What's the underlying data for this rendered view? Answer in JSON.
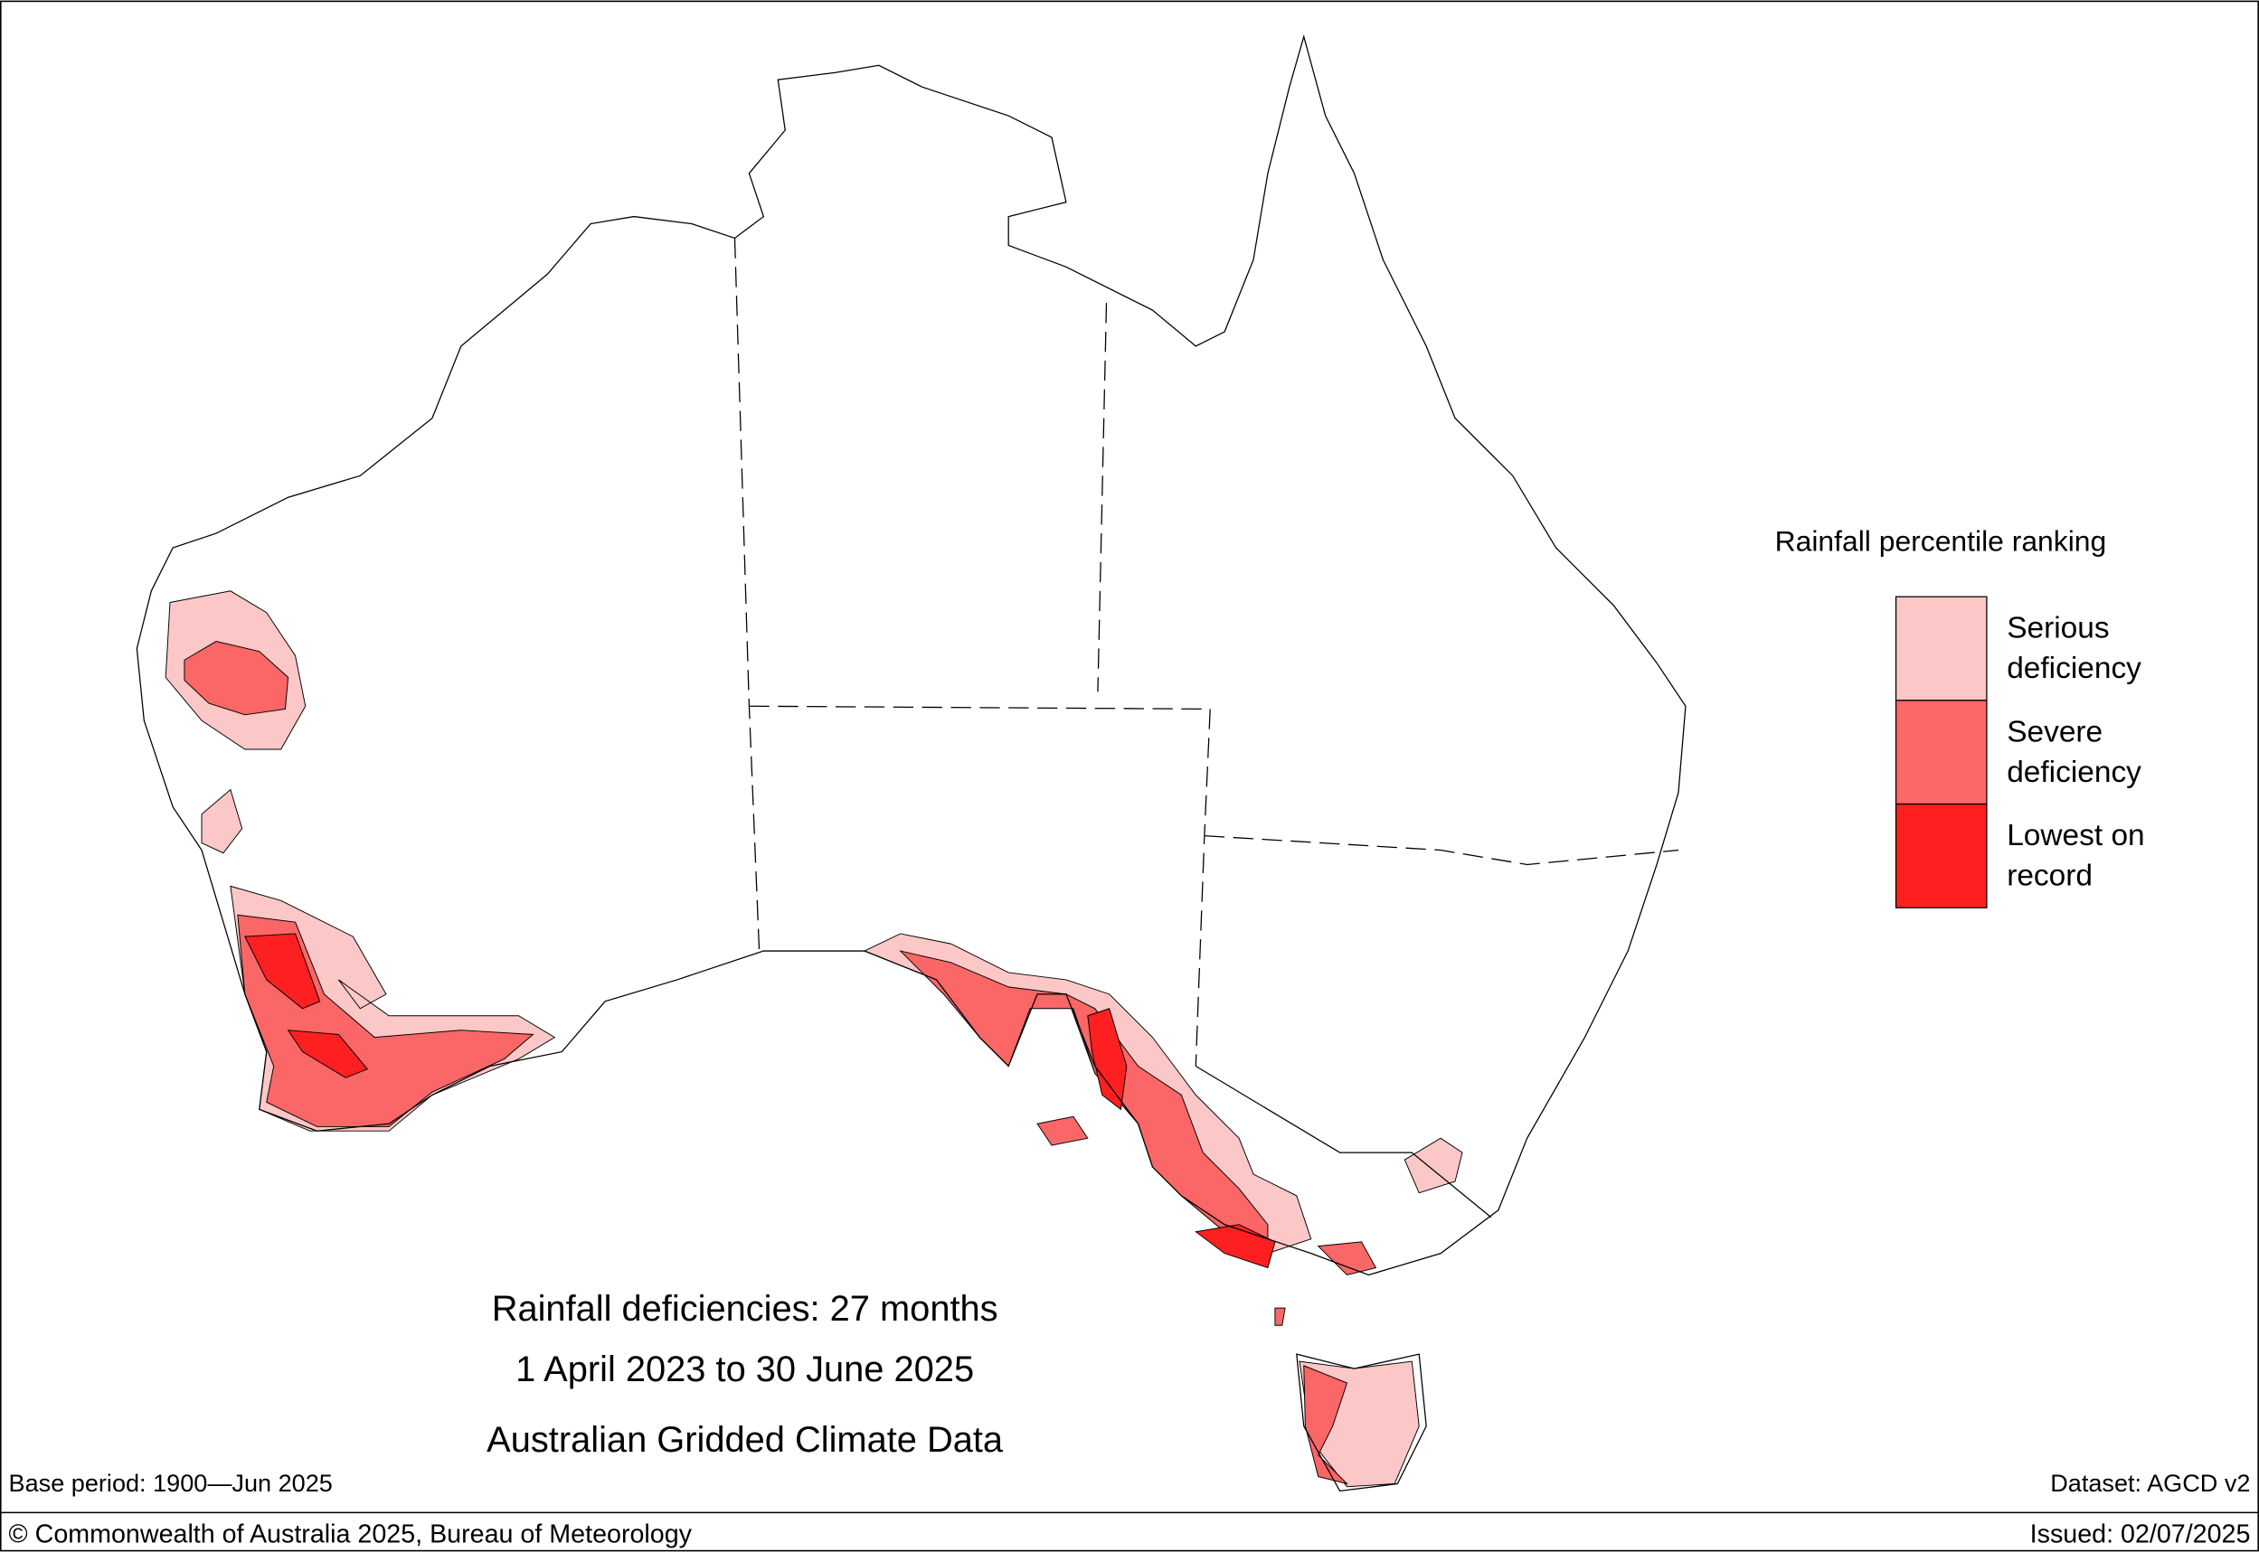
{
  "map": {
    "title": [
      "Rainfall deficiencies: 27 months",
      "1 April 2023 to 30 June 2025",
      "Australian Gridded Climate Data"
    ],
    "legend": {
      "title": "Rainfall percentile ranking",
      "items": [
        {
          "label": [
            "Serious",
            "deficiency"
          ],
          "color": "#fcc7c7"
        },
        {
          "label": [
            "Severe",
            "deficiency"
          ],
          "color": "#fb6666"
        },
        {
          "label": [
            "Lowest on",
            "record"
          ],
          "color": "#fe2020"
        }
      ]
    },
    "base_period": "Base period: 1900—Jun 2025",
    "dataset": "Dataset: AGCD v2",
    "copyright": "© Commonwealth of Australia 2025, Bureau of Meteorology",
    "issued": "Issued: 02/07/2025"
  }
}
